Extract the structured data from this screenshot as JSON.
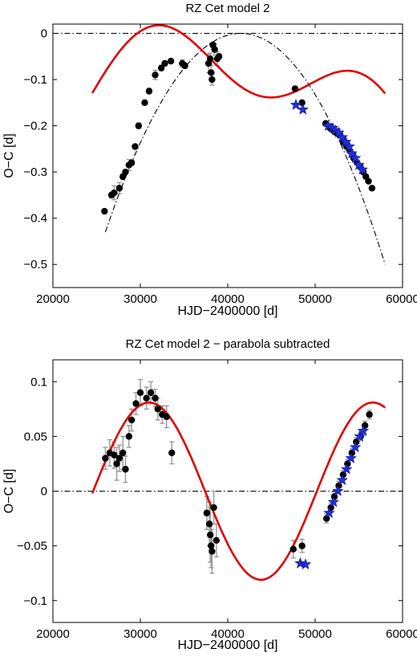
{
  "chart_data": [
    {
      "type": "scatter",
      "title": "RZ Cet model 2",
      "xlabel": "HJD−2400000 [d]",
      "ylabel": "O−C [d]",
      "xlim": [
        20000,
        60000
      ],
      "ylim": [
        -0.55,
        0.02
      ],
      "xticks": [
        20000,
        30000,
        40000,
        50000,
        60000
      ],
      "xtick_labels": [
        "20000",
        "30000",
        "40000",
        "50000",
        "60000"
      ],
      "yticks": [
        0,
        -0.1,
        -0.2,
        -0.3,
        -0.4,
        -0.5
      ],
      "ytick_labels": [
        "0",
        "−0.1",
        "−0.2",
        "−0.3",
        "−0.4",
        "−0.5"
      ],
      "grid": false,
      "reference_line": {
        "y": 0,
        "style": "dash-dot",
        "color": "#000000"
      },
      "comparison_curve": {
        "style": "dash-dot",
        "color": "#000000",
        "kind": "parabola",
        "vertex": [
          41500,
          0.0
        ],
        "ends": [
          [
            26000,
            -0.43
          ],
          [
            58000,
            -0.5
          ]
        ]
      },
      "fit_curve": {
        "color": "#e00000",
        "kind": "parabola plus sinusoid",
        "x_range": [
          24500,
          58000
        ]
      },
      "series": [
        {
          "marker": "circle",
          "color": "#000000",
          "error_color": "#999999",
          "points": [
            [
              25900,
              -0.385
            ],
            [
              26700,
              -0.35
            ],
            [
              27000,
              -0.345
            ],
            [
              27600,
              -0.335
            ],
            [
              28000,
              -0.31
            ],
            [
              28300,
              -0.3
            ],
            [
              28700,
              -0.285
            ],
            [
              29000,
              -0.28
            ],
            [
              29400,
              -0.245
            ],
            [
              29800,
              -0.2
            ],
            [
              30500,
              -0.15
            ],
            [
              31000,
              -0.125
            ],
            [
              31700,
              -0.09
            ],
            [
              32400,
              -0.075
            ],
            [
              32800,
              -0.065
            ],
            [
              33500,
              -0.06
            ],
            [
              34800,
              -0.065
            ],
            [
              35100,
              -0.07
            ],
            [
              37800,
              -0.065
            ],
            [
              38000,
              -0.055
            ],
            [
              38100,
              -0.085
            ],
            [
              38200,
              -0.1
            ],
            [
              38300,
              -0.025
            ],
            [
              38500,
              -0.035
            ],
            [
              38800,
              -0.055
            ],
            [
              39000,
              -0.05
            ],
            [
              47700,
              -0.12
            ],
            [
              48500,
              -0.15
            ],
            [
              51200,
              -0.195
            ],
            [
              51700,
              -0.205
            ],
            [
              52100,
              -0.21
            ],
            [
              52400,
              -0.215
            ],
            [
              52800,
              -0.22
            ],
            [
              53200,
              -0.235
            ],
            [
              53600,
              -0.245
            ],
            [
              54000,
              -0.255
            ],
            [
              54400,
              -0.27
            ],
            [
              54800,
              -0.28
            ],
            [
              55200,
              -0.29
            ],
            [
              55500,
              -0.3
            ],
            [
              55800,
              -0.31
            ],
            [
              56100,
              -0.32
            ],
            [
              56500,
              -0.335
            ]
          ],
          "errors": [
            0.005,
            0.006,
            0.015,
            0.012,
            0.006,
            0.005,
            0.012,
            0.006,
            0.005,
            0.006,
            0.005,
            0.006,
            0.01,
            0.006,
            0.005,
            0.005,
            0.008,
            0.006,
            0.02,
            0.012,
            0.015,
            0.012,
            0.005,
            0.012,
            0.015,
            0.006,
            0.006,
            0.005,
            0.004,
            0.003,
            0.003,
            0.003,
            0.003,
            0.003,
            0.003,
            0.003,
            0.003,
            0.003,
            0.003,
            0.003,
            0.003,
            0.003,
            0.003
          ]
        },
        {
          "marker": "star",
          "color": "#1f2fd6",
          "points": [
            [
              47800,
              -0.155
            ],
            [
              48600,
              -0.165
            ],
            [
              51500,
              -0.2
            ],
            [
              52000,
              -0.205
            ],
            [
              52300,
              -0.21
            ],
            [
              52700,
              -0.215
            ],
            [
              53100,
              -0.225
            ],
            [
              53500,
              -0.235
            ],
            [
              53900,
              -0.245
            ],
            [
              54200,
              -0.26
            ],
            [
              54600,
              -0.27
            ],
            [
              55000,
              -0.285
            ],
            [
              55400,
              -0.295
            ]
          ]
        }
      ]
    },
    {
      "type": "scatter",
      "title": "RZ Cet model 2 − parabola subtracted",
      "xlabel": "HJD−2400000 [d]",
      "ylabel": "O−C [d]",
      "xlim": [
        20000,
        60000
      ],
      "ylim": [
        -0.12,
        0.12
      ],
      "xticks": [
        20000,
        30000,
        40000,
        50000,
        60000
      ],
      "xtick_labels": [
        "20000",
        "30000",
        "40000",
        "50000",
        "60000"
      ],
      "yticks": [
        0.1,
        0.05,
        0,
        -0.05,
        -0.1
      ],
      "ytick_labels": [
        "0.1",
        "0.05",
        "0",
        "−0.05",
        "−0.1"
      ],
      "grid": false,
      "reference_line": {
        "y": 0,
        "style": "dash-dot",
        "color": "#000000"
      },
      "fit_curve": {
        "color": "#e00000",
        "kind": "sinusoid",
        "x_range": [
          24500,
          58000
        ],
        "extrema": [
          [
            31000,
            0.081
          ],
          [
            43800,
            -0.081
          ]
        ],
        "period": 25600
      },
      "series": [
        {
          "marker": "circle",
          "color": "#000000",
          "error_color": "#999999",
          "points": [
            [
              26000,
              0.03
            ],
            [
              26500,
              0.035
            ],
            [
              27000,
              0.033
            ],
            [
              27300,
              0.025
            ],
            [
              27600,
              0.03
            ],
            [
              28000,
              0.035
            ],
            [
              28300,
              0.02
            ],
            [
              28700,
              0.05
            ],
            [
              29000,
              0.065
            ],
            [
              29500,
              0.08
            ],
            [
              30000,
              0.09
            ],
            [
              30700,
              0.085
            ],
            [
              31200,
              0.09
            ],
            [
              31700,
              0.085
            ],
            [
              32000,
              0.075
            ],
            [
              32500,
              0.07
            ],
            [
              33000,
              0.068
            ],
            [
              33600,
              0.035
            ],
            [
              37600,
              -0.02
            ],
            [
              37900,
              -0.03
            ],
            [
              38000,
              -0.04
            ],
            [
              38100,
              -0.05
            ],
            [
              38200,
              -0.055
            ],
            [
              38400,
              -0.015
            ],
            [
              38700,
              -0.045
            ],
            [
              47500,
              -0.053
            ],
            [
              48500,
              -0.05
            ],
            [
              51300,
              -0.025
            ],
            [
              51800,
              -0.015
            ],
            [
              52200,
              -0.005
            ],
            [
              52700,
              0.005
            ],
            [
              53200,
              0.015
            ],
            [
              53700,
              0.025
            ],
            [
              54200,
              0.035
            ],
            [
              54700,
              0.045
            ],
            [
              55200,
              0.05
            ],
            [
              55700,
              0.06
            ],
            [
              56200,
              0.07
            ]
          ],
          "errors": [
            0.01,
            0.012,
            0.012,
            0.015,
            0.012,
            0.015,
            0.012,
            0.01,
            0.01,
            0.01,
            0.012,
            0.01,
            0.01,
            0.008,
            0.01,
            0.008,
            0.01,
            0.01,
            0.015,
            0.02,
            0.025,
            0.02,
            0.02,
            0.015,
            0.015,
            0.008,
            0.006,
            0.004,
            0.004,
            0.004,
            0.004,
            0.004,
            0.004,
            0.004,
            0.004,
            0.004,
            0.004,
            0.004
          ]
        },
        {
          "marker": "star",
          "color": "#1f2fd6",
          "points": [
            [
              48300,
              -0.066
            ],
            [
              48900,
              -0.067
            ],
            [
              51600,
              -0.02
            ],
            [
              52100,
              -0.01
            ],
            [
              52600,
              0.0
            ],
            [
              53100,
              0.01
            ],
            [
              53600,
              0.02
            ],
            [
              54100,
              0.03
            ],
            [
              54600,
              0.04
            ],
            [
              55100,
              0.05
            ],
            [
              55500,
              0.055
            ]
          ]
        }
      ]
    }
  ]
}
